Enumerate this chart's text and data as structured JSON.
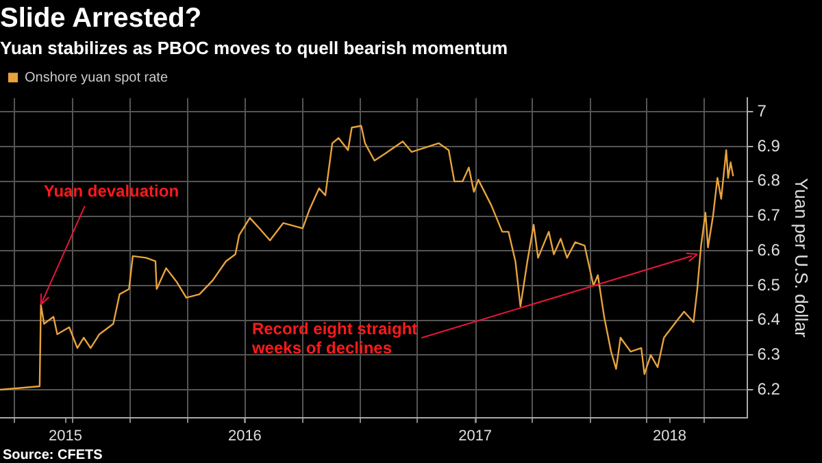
{
  "chart_data": {
    "type": "line",
    "title": "Slide Arrested?",
    "subtitle": "Yuan stabilizes as PBOC moves to quell bearish momentum",
    "ylabel": "Yuan per U.S. dollar",
    "legend": "top left",
    "grid": true,
    "marker": "none",
    "line_style": "solid",
    "xlim": [
      "2015-06-08",
      "2018-09-08"
    ],
    "ylim": [
      6.12,
      7.04
    ],
    "yticks": [
      6.2,
      6.3,
      6.4,
      6.5,
      6.6,
      6.7,
      6.8,
      6.9,
      7.0
    ],
    "xticks": [
      {
        "value": "2015-07-01",
        "label": null
      },
      {
        "value": "2015-09-20",
        "label": "2015"
      },
      {
        "value": "2015-10-01",
        "label": null
      },
      {
        "value": "2016-01-01",
        "label": null
      },
      {
        "value": "2016-04-01",
        "label": null
      },
      {
        "value": "2016-07-01",
        "label": "2016"
      },
      {
        "value": "2016-07-02",
        "label": null
      },
      {
        "value": "2016-10-01",
        "label": null
      },
      {
        "value": "2017-01-01",
        "label": null
      },
      {
        "value": "2017-04-01",
        "label": null
      },
      {
        "value": "2017-07-02",
        "label": "2017"
      },
      {
        "value": "2017-07-03",
        "label": null
      },
      {
        "value": "2017-10-01",
        "label": null
      },
      {
        "value": "2018-01-01",
        "label": null
      },
      {
        "value": "2018-04-01",
        "label": null
      },
      {
        "value": "2018-05-07",
        "label": "2018"
      },
      {
        "value": "2018-07-01",
        "label": null
      }
    ],
    "annotations": [
      {
        "text": "Yuan devaluation",
        "x": "2015-08-12",
        "y": 6.445
      },
      {
        "text": "Record eight straight weeks of declines",
        "x": "2018-06-20",
        "y": 6.59
      },
      "Source: CFETS"
    ],
    "series": [
      {
        "name": "Onshore yuan spot rate",
        "color": "#e8a33c",
        "x": [
          "2015-06-08",
          "2015-08-10",
          "2015-08-12",
          "2015-08-17",
          "2015-09-01",
          "2015-09-07",
          "2015-09-26",
          "2015-10-09",
          "2015-10-19",
          "2015-10-30",
          "2015-11-13",
          "2015-12-05",
          "2015-12-15",
          "2015-12-30",
          "2016-01-05",
          "2016-01-26",
          "2016-02-10",
          "2016-02-12",
          "2016-02-27",
          "2016-03-15",
          "2016-03-30",
          "2016-04-20",
          "2016-05-11",
          "2016-06-01",
          "2016-06-16",
          "2016-06-22",
          "2016-07-09",
          "2016-07-24",
          "2016-08-10",
          "2016-08-31",
          "2016-10-01",
          "2016-10-12",
          "2016-10-27",
          "2016-11-06",
          "2016-11-17",
          "2016-11-27",
          "2016-12-12",
          "2016-12-18",
          "2017-01-02",
          "2017-01-08",
          "2017-01-23",
          "2017-02-09",
          "2017-03-09",
          "2017-03-23",
          "2017-05-05",
          "2017-05-21",
          "2017-05-30",
          "2017-06-12",
          "2017-06-22",
          "2017-06-30",
          "2017-07-07",
          "2017-07-28",
          "2017-08-14",
          "2017-08-24",
          "2017-09-04",
          "2017-09-12",
          "2017-09-23",
          "2017-10-03",
          "2017-10-10",
          "2017-10-27",
          "2017-11-04",
          "2017-11-15",
          "2017-11-25",
          "2017-12-08",
          "2017-12-23",
          "2018-01-06",
          "2018-01-13",
          "2018-01-23",
          "2018-02-03",
          "2018-02-11",
          "2018-02-18",
          "2018-03-06",
          "2018-03-23",
          "2018-03-28",
          "2018-04-07",
          "2018-04-18",
          "2018-04-28",
          "2018-05-19",
          "2018-05-30",
          "2018-06-14",
          "2018-06-20",
          "2018-06-26",
          "2018-07-03",
          "2018-07-07",
          "2018-07-15",
          "2018-07-22",
          "2018-07-28",
          "2018-08-05",
          "2018-08-08",
          "2018-08-12",
          "2018-08-16"
        ],
        "values": [
          6.2,
          6.21,
          6.445,
          6.39,
          6.41,
          6.36,
          6.38,
          6.32,
          6.35,
          6.32,
          6.36,
          6.39,
          6.475,
          6.49,
          6.585,
          6.58,
          6.57,
          6.49,
          6.55,
          6.51,
          6.465,
          6.475,
          6.515,
          6.57,
          6.59,
          6.645,
          6.695,
          6.665,
          6.63,
          6.68,
          6.665,
          6.72,
          6.78,
          6.76,
          6.91,
          6.925,
          6.89,
          6.955,
          6.96,
          6.91,
          6.86,
          6.88,
          6.915,
          6.885,
          6.91,
          6.89,
          6.8,
          6.8,
          6.84,
          6.77,
          6.805,
          6.73,
          6.655,
          6.655,
          6.57,
          6.44,
          6.57,
          6.675,
          6.58,
          6.655,
          6.59,
          6.635,
          6.58,
          6.625,
          6.615,
          6.5,
          6.53,
          6.41,
          6.31,
          6.26,
          6.35,
          6.31,
          6.32,
          6.245,
          6.3,
          6.265,
          6.35,
          6.4,
          6.425,
          6.395,
          6.49,
          6.615,
          6.71,
          6.61,
          6.7,
          6.81,
          6.75,
          6.89,
          6.81,
          6.855,
          6.815
        ]
      }
    ]
  }
}
